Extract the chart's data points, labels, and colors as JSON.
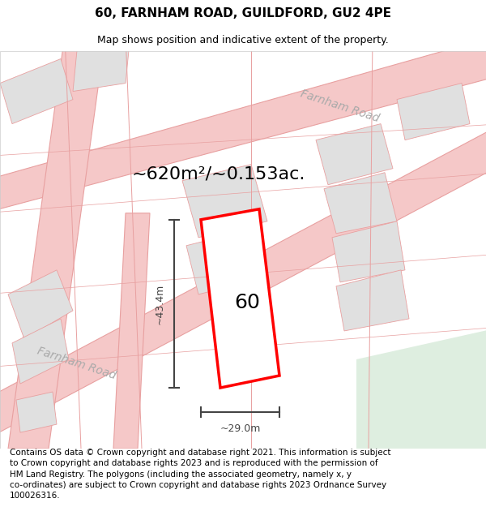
{
  "title_line1": "60, FARNHAM ROAD, GUILDFORD, GU2 4PE",
  "title_line2": "Map shows position and indicative extent of the property.",
  "area_text": "~620m²/~0.153ac.",
  "label_60": "60",
  "dim_height": "~43.4m",
  "dim_width": "~29.0m",
  "road_label_1": "Farnham Road",
  "road_label_2": "Farnham Road",
  "copyright_text": "Contains OS data © Crown copyright and database right 2021. This information is subject\nto Crown copyright and database rights 2023 and is reproduced with the permission of\nHM Land Registry. The polygons (including the associated geometry, namely x, y\nco-ordinates) are subject to Crown copyright and database rights 2023 Ordnance Survey\n100026316.",
  "bg_color": "#f0efed",
  "map_bg": "#f7f6f4",
  "road_color": "#f5c8c8",
  "road_edge_color": "#e8a0a0",
  "green_area": "#deeee0",
  "gray_area": "#e0e0e0",
  "property_color": "red",
  "dim_color": "#444444",
  "title_fontsize": 11,
  "subtitle_fontsize": 9,
  "area_fontsize": 16,
  "label_fontsize": 18,
  "copyright_fontsize": 7.5
}
